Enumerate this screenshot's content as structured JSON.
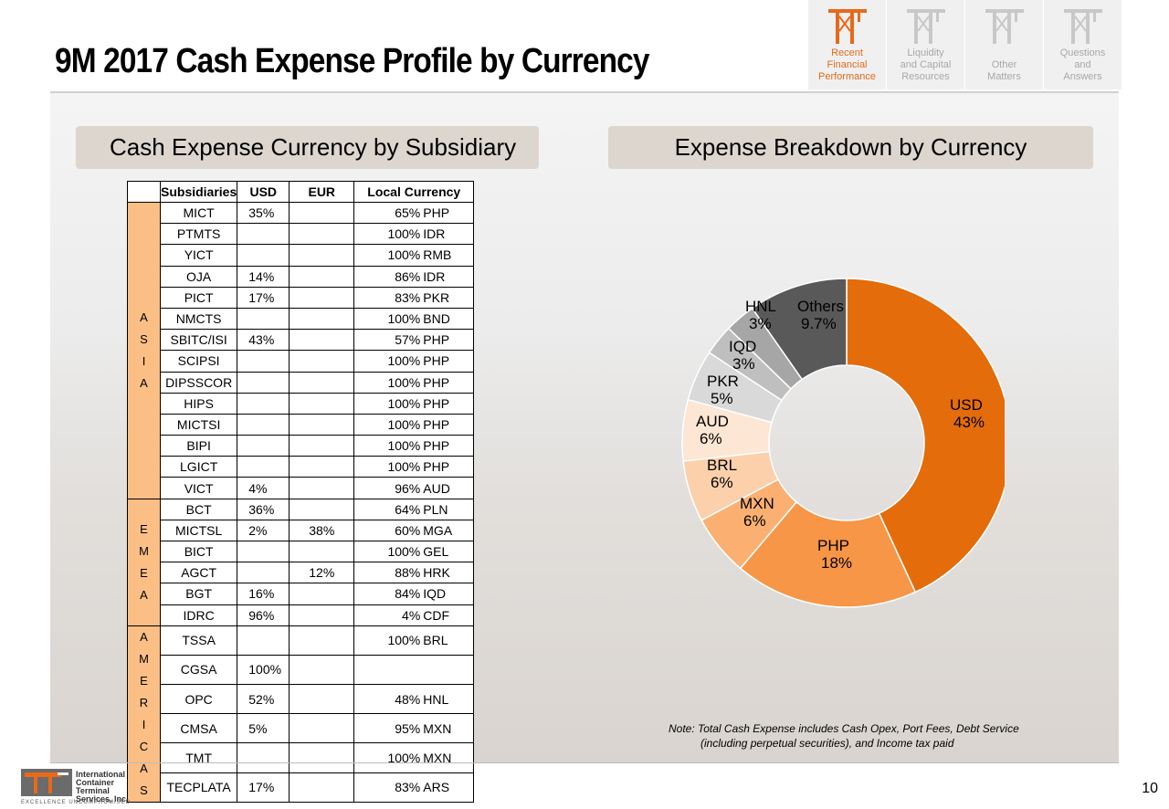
{
  "title": "9M 2017 Cash Expense Profile by Currency",
  "nav": [
    {
      "label": "Recent Financial Performance",
      "lines": [
        "Recent",
        "Financial",
        "Performance"
      ],
      "active": true
    },
    {
      "label": "Liquidity and Capital Resources",
      "lines": [
        "Liquidity",
        "and Capital",
        "Resources"
      ],
      "active": false
    },
    {
      "label": "Other Matters",
      "lines": [
        "",
        "Other",
        "Matters"
      ],
      "active": false
    },
    {
      "label": "Questions and Answers",
      "lines": [
        "Questions",
        "and",
        "Answers"
      ],
      "active": false
    }
  ],
  "left_section": {
    "title": "Cash Expense Currency by Subsidiary"
  },
  "right_section": {
    "title": "Expense Breakdown by Currency"
  },
  "table": {
    "headers": [
      "Subsidiaries",
      "USD",
      "EUR",
      "Local Currency"
    ],
    "regions": [
      {
        "name": "ASIA",
        "letters": [
          "A",
          "S",
          "I",
          "A"
        ],
        "rows": [
          {
            "sub": "MICT",
            "usd": "35%",
            "eur": "",
            "local_pct": "65%",
            "local_cur": "PHP"
          },
          {
            "sub": "PTMTS",
            "usd": "",
            "eur": "",
            "local_pct": "100%",
            "local_cur": "IDR"
          },
          {
            "sub": "YICT",
            "usd": "",
            "eur": "",
            "local_pct": "100%",
            "local_cur": "RMB"
          },
          {
            "sub": "OJA",
            "usd": "14%",
            "eur": "",
            "local_pct": "86%",
            "local_cur": "IDR"
          },
          {
            "sub": "PICT",
            "usd": "17%",
            "eur": "",
            "local_pct": "83%",
            "local_cur": "PKR"
          },
          {
            "sub": "NMCTS",
            "usd": "",
            "eur": "",
            "local_pct": "100%",
            "local_cur": "BND"
          },
          {
            "sub": "SBITC/ISI",
            "usd": "43%",
            "eur": "",
            "local_pct": "57%",
            "local_cur": "PHP"
          },
          {
            "sub": "SCIPSI",
            "usd": "",
            "eur": "",
            "local_pct": "100%",
            "local_cur": "PHP"
          },
          {
            "sub": "DIPSSCOR",
            "usd": "",
            "eur": "",
            "local_pct": "100%",
            "local_cur": "PHP"
          },
          {
            "sub": "HIPS",
            "usd": "",
            "eur": "",
            "local_pct": "100%",
            "local_cur": "PHP"
          },
          {
            "sub": "MICTSI",
            "usd": "",
            "eur": "",
            "local_pct": "100%",
            "local_cur": "PHP"
          },
          {
            "sub": "BIPI",
            "usd": "",
            "eur": "",
            "local_pct": "100%",
            "local_cur": "PHP"
          },
          {
            "sub": "LGICT",
            "usd": "",
            "eur": "",
            "local_pct": "100%",
            "local_cur": "PHP"
          },
          {
            "sub": "VICT",
            "usd": "4%",
            "eur": "",
            "local_pct": "96%",
            "local_cur": "AUD"
          }
        ]
      },
      {
        "name": "EMEA",
        "letters": [
          "E",
          "M",
          "E",
          "A"
        ],
        "rows": [
          {
            "sub": "BCT",
            "usd": "36%",
            "eur": "",
            "local_pct": "64%",
            "local_cur": "PLN"
          },
          {
            "sub": "MICTSL",
            "usd": "2%",
            "eur": "38%",
            "local_pct": "60%",
            "local_cur": "MGA"
          },
          {
            "sub": "BICT",
            "usd": "",
            "eur": "",
            "local_pct": "100%",
            "local_cur": "GEL"
          },
          {
            "sub": "AGCT",
            "usd": "",
            "eur": "12%",
            "local_pct": "88%",
            "local_cur": "HRK"
          },
          {
            "sub": "BGT",
            "usd": "16%",
            "eur": "",
            "local_pct": "84%",
            "local_cur": "IQD"
          },
          {
            "sub": "IDRC",
            "usd": "96%",
            "eur": "",
            "local_pct": "4%",
            "local_cur": "CDF"
          }
        ]
      },
      {
        "name": "AMERICAS",
        "letters": [
          "A",
          "M",
          "E",
          "R",
          "I",
          "C",
          "A",
          "S"
        ],
        "rows": [
          {
            "sub": "TSSA",
            "usd": "",
            "eur": "",
            "local_pct": "100%",
            "local_cur": "BRL"
          },
          {
            "sub": "CGSA",
            "usd": "100%",
            "eur": "",
            "local_pct": "",
            "local_cur": ""
          },
          {
            "sub": "OPC",
            "usd": "52%",
            "eur": "",
            "local_pct": "48%",
            "local_cur": "HNL"
          },
          {
            "sub": "CMSA",
            "usd": "5%",
            "eur": "",
            "local_pct": "95%",
            "local_cur": "MXN"
          },
          {
            "sub": "TMT",
            "usd": "",
            "eur": "",
            "local_pct": "100%",
            "local_cur": "MXN"
          },
          {
            "sub": "TECPLATA",
            "usd": "17%",
            "eur": "",
            "local_pct": "83%",
            "local_cur": "ARS"
          }
        ]
      }
    ]
  },
  "chart_data": {
    "type": "pie",
    "title": "",
    "donut": true,
    "categories": [
      "USD",
      "PHP",
      "MXN",
      "BRL",
      "AUD",
      "PKR",
      "IQD",
      "HNL",
      "Others"
    ],
    "values": [
      43,
      18,
      6,
      6,
      6,
      5,
      3,
      3,
      9.7
    ],
    "labels": [
      "43%",
      "18%",
      "6%",
      "6%",
      "6%",
      "5%",
      "3%",
      "3%",
      "9.7%"
    ],
    "colors": [
      "#e46c0a",
      "#f79646",
      "#fbb072",
      "#fcd0ab",
      "#fde6d4",
      "#d9d9d9",
      "#bfbfbf",
      "#a6a6a6",
      "#595959"
    ]
  },
  "note": {
    "line1": "Note: Total Cash Expense includes Cash Opex, Port Fees, Debt Service",
    "line2": "(including perpetual securities), and Income tax paid"
  },
  "footer": {
    "logo_lines": [
      "International",
      "Container Terminal",
      "Services, Inc."
    ],
    "tagline": "EXCELLENCE UNCOMPROMISED"
  },
  "page_number": "10"
}
